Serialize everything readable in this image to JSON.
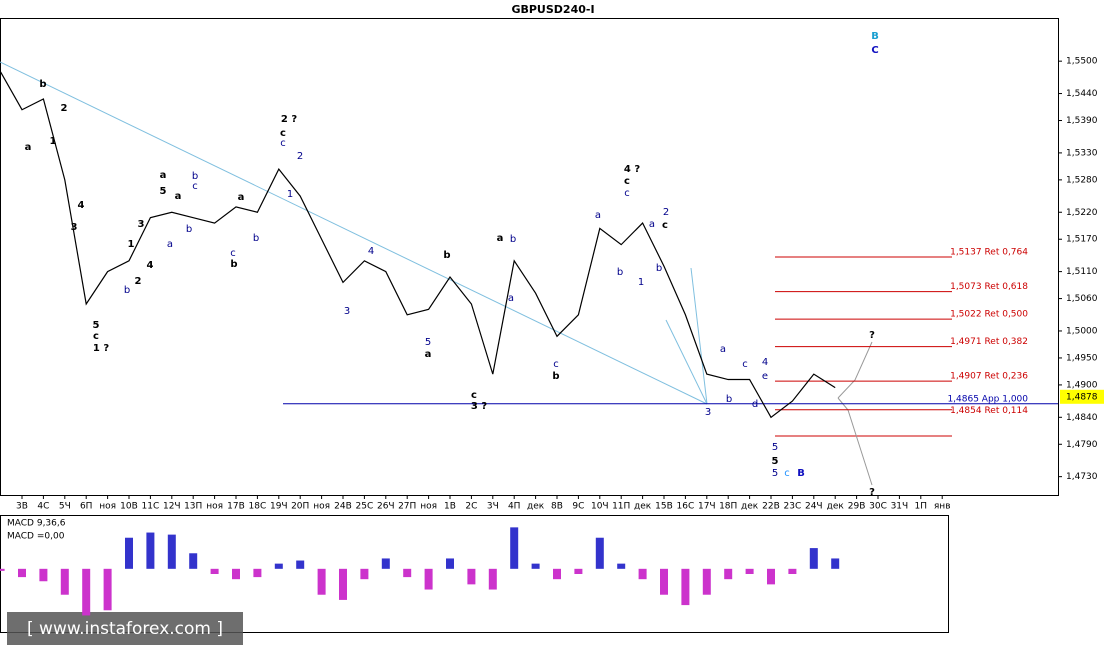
{
  "chart_data": {
    "type": "line",
    "title": "GBPUSD240-I",
    "categories": [
      "3В",
      "4С",
      "5Ч",
      "6П",
      "ноя",
      "10В",
      "11С",
      "12Ч",
      "13П",
      "ноя",
      "17В",
      "18С",
      "19Ч",
      "20П",
      "ноя",
      "24В",
      "25С",
      "26Ч",
      "27П",
      "ноя",
      "1В",
      "2С",
      "3Ч",
      "4П",
      "дек",
      "8В",
      "9С",
      "10Ч",
      "11П",
      "дек",
      "15В",
      "16С",
      "17Ч",
      "18П",
      "дек",
      "22В",
      "23С",
      "24Ч",
      "дек",
      "29В",
      "30С",
      "31Ч",
      "1П",
      "янв"
    ],
    "x": [
      -1,
      0,
      1,
      2,
      3,
      4,
      5,
      6,
      7,
      8,
      9,
      10,
      11,
      12,
      13,
      14,
      15,
      16,
      17,
      18,
      19,
      20,
      21,
      22,
      23,
      24,
      25,
      26,
      27,
      28,
      29,
      30,
      31,
      32,
      33,
      34,
      35,
      36,
      37,
      38
    ],
    "series": [
      {
        "name": "GBPUSD240-I",
        "color": "#000000",
        "values": [
          1.548,
          1.541,
          1.543,
          1.528,
          1.505,
          1.511,
          1.513,
          1.521,
          1.522,
          1.521,
          1.52,
          1.523,
          1.522,
          1.53,
          1.525,
          1.517,
          1.509,
          1.513,
          1.511,
          1.503,
          1.504,
          1.51,
          1.505,
          1.492,
          1.513,
          1.507,
          1.499,
          1.503,
          1.519,
          1.516,
          1.52,
          1.512,
          1.503,
          1.492,
          1.491,
          1.491,
          1.484,
          1.487,
          1.492,
          1.4895
        ]
      }
    ],
    "ylim": [
      1.4696,
      1.558
    ],
    "yticks": [
      {
        "value": 1.55,
        "label": "1,5500"
      },
      {
        "value": 1.544,
        "label": "1,5440"
      },
      {
        "value": 1.539,
        "label": "1,5390"
      },
      {
        "value": 1.533,
        "label": "1,5330"
      },
      {
        "value": 1.528,
        "label": "1,5280"
      },
      {
        "value": 1.522,
        "label": "1,5220"
      },
      {
        "value": 1.517,
        "label": "1,5170"
      },
      {
        "value": 1.511,
        "label": "1,5110"
      },
      {
        "value": 1.506,
        "label": "1,5060"
      },
      {
        "value": 1.5,
        "label": "1,5000"
      },
      {
        "value": 1.495,
        "label": "1,4950"
      },
      {
        "value": 1.49,
        "label": "1,4900"
      },
      {
        "value": 1.484,
        "label": "1,4840"
      },
      {
        "value": 1.479,
        "label": "1,4790"
      },
      {
        "value": 1.473,
        "label": "1,4730"
      }
    ],
    "last_price": {
      "value": 1.4878,
      "label": "1,4878"
    },
    "fib_levels": [
      {
        "value": 1.5137,
        "label": "1,5137 Ret 0,764"
      },
      {
        "value": 1.5073,
        "label": "1,5073 Ret 0,618"
      },
      {
        "value": 1.5022,
        "label": "1,5022 Ret 0,500"
      },
      {
        "value": 1.4971,
        "label": "1,4971 Ret 0,382"
      },
      {
        "value": 1.4907,
        "label": "1,4907 Ret 0,236"
      },
      {
        "value": 1.4865,
        "label": "1,4865 App 1,000"
      },
      {
        "value": 1.4854,
        "label": "1,4854 Ret 0,114"
      }
    ],
    "wave_labels": [
      "a",
      "b",
      "2",
      "1",
      "4",
      "3",
      "5",
      "c",
      "1 ?",
      "1",
      "2",
      "3",
      "4",
      "b",
      "a",
      "5",
      "a",
      "b",
      "c",
      "a",
      "b",
      "c",
      "b",
      "a",
      "b",
      "2 ?",
      "c",
      "c",
      "2",
      "1",
      "4",
      "3",
      "b",
      "5",
      "a",
      "c",
      "3 ?",
      "a",
      "b",
      "a",
      "c",
      "b",
      "a",
      "b",
      "1",
      "4 ?",
      "c",
      "c",
      "a",
      "2",
      "c",
      "b",
      "3",
      "a",
      "b",
      "c",
      "4",
      "e",
      "d",
      "5",
      "5",
      "5",
      "c",
      "B",
      "B",
      "C",
      "?",
      "?"
    ],
    "macd": {
      "title": "MACD 9,36,6",
      "readout": "MACD =0,00",
      "color": "#cc33cc",
      "pos_color": "#3333cc",
      "ylim": [
        -60,
        50
      ],
      "values": [
        -2,
        -8,
        -12,
        -25,
        -45,
        -40,
        30,
        35,
        33,
        15,
        -5,
        -10,
        -8,
        5,
        8,
        -25,
        -30,
        -10,
        10,
        -8,
        -20,
        10,
        -15,
        -20,
        40,
        5,
        -10,
        -5,
        30,
        5,
        -10,
        -25,
        -35,
        -25,
        -10,
        -5,
        -15,
        -5,
        20,
        10
      ]
    },
    "watermark": "[ www.instaforex.com ]"
  }
}
